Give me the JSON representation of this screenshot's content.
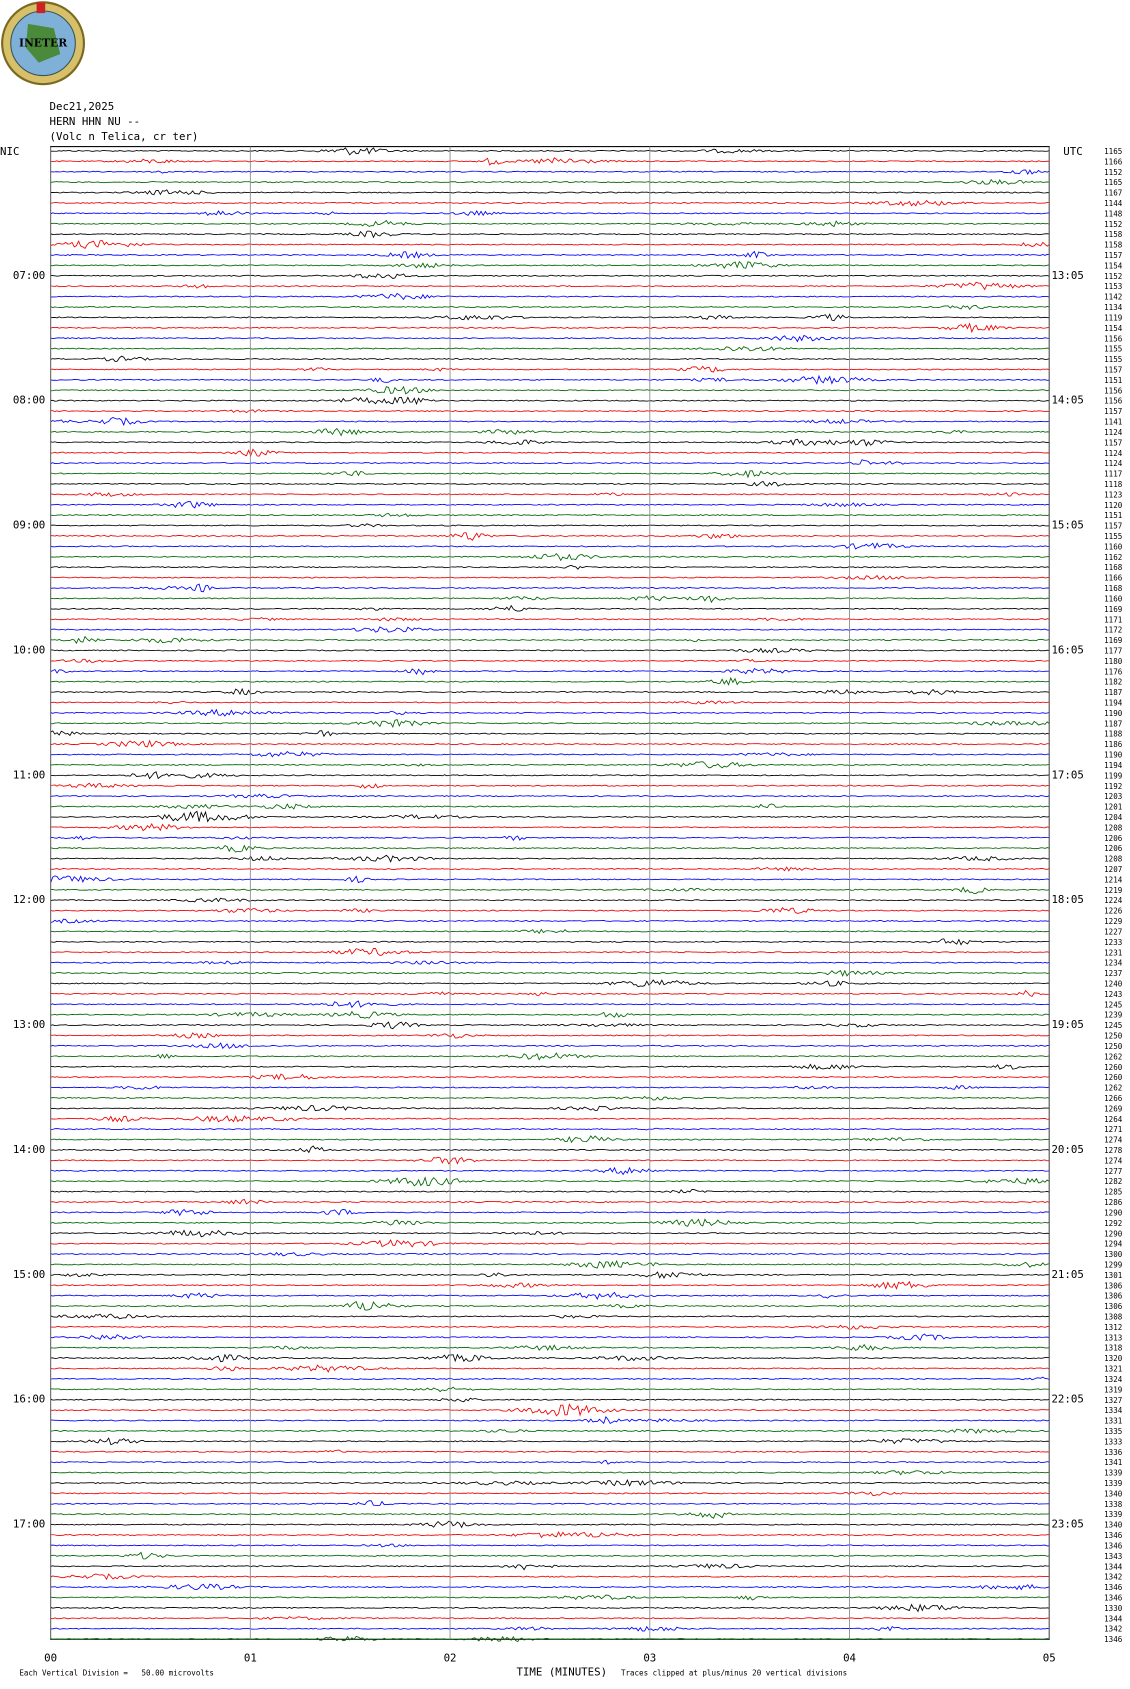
{
  "logo": {
    "text": "INETER"
  },
  "header": {
    "date": "Dec21,2025",
    "station": "HERN HHN NU --",
    "location": "(Volc n Telica, cr ter)"
  },
  "labels": {
    "left_zone": "NIC",
    "right_zone": "UTC"
  },
  "left_times": [
    "07:00",
    "08:00",
    "09:00",
    "10:00",
    "11:00",
    "12:00",
    "13:00",
    "14:00",
    "15:00",
    "16:00",
    "17:00"
  ],
  "right_times": [
    "13:05",
    "14:05",
    "15:05",
    "16:05",
    "17:05",
    "18:05",
    "19:05",
    "20:05",
    "21:05",
    "22:05",
    "23:05"
  ],
  "row_numbers": [
    1165,
    1166,
    1152,
    1165,
    1167,
    1144,
    1148,
    1152,
    1158,
    1158,
    1157,
    1154,
    1152,
    1153,
    1142,
    1134,
    1119,
    1154,
    1156,
    1155,
    1155,
    1157,
    1151,
    1156,
    1156,
    1157,
    1141,
    1124,
    1157,
    1124,
    1124,
    1117,
    1118,
    1123,
    1120,
    1151,
    1157,
    1155,
    1160,
    1162,
    1168,
    1166,
    1168,
    1160,
    1169,
    1171,
    1172,
    1169,
    1177,
    1180,
    1176,
    1182,
    1187,
    1194,
    1190,
    1187,
    1188,
    1186,
    1190,
    1194,
    1199,
    1192,
    1203,
    1201,
    1204,
    1208,
    1206,
    1206,
    1208,
    1207,
    1214,
    1219,
    1224,
    1226,
    1229,
    1227,
    1233,
    1231,
    1234,
    1237,
    1240,
    1243,
    1245,
    1239,
    1245,
    1250,
    1250,
    1262,
    1260,
    1260,
    1262,
    1266,
    1269,
    1264,
    1271,
    1274,
    1278,
    1274,
    1277,
    1282,
    1285,
    1286,
    1290,
    1292,
    1290,
    1294,
    1300,
    1299,
    1301,
    1306,
    1306,
    1306,
    1308,
    1312,
    1313,
    1318,
    1320,
    1321,
    1324,
    1319,
    1327,
    1334,
    1331,
    1335,
    1333,
    1336,
    1341,
    1339,
    1339,
    1340,
    1338,
    1339,
    1340,
    1346,
    1346,
    1343,
    1344,
    1342,
    1346,
    1346,
    1330,
    1344,
    1342,
    1346
  ],
  "x_axis": {
    "ticks": [
      "00",
      "01",
      "02",
      "03",
      "04",
      "05"
    ],
    "title": "TIME (MINUTES)"
  },
  "footer": {
    "scale": "Each Vertical Division =   50.00 microvolts",
    "clip": "Traces clipped at plus/minus 20 vertical divisions"
  }
}
